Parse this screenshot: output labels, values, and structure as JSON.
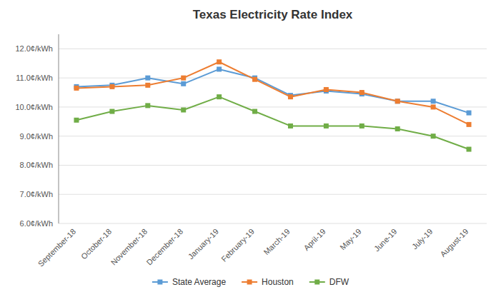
{
  "chart_data": {
    "type": "line",
    "title": "Texas Electricity Rate Index",
    "categories": [
      "September-18",
      "October-18",
      "November-18",
      "December-18",
      "January-19",
      "February-19",
      "March-19",
      "April-19",
      "May-19",
      "June-19",
      "July-19",
      "August-19"
    ],
    "series": [
      {
        "name": "State Average",
        "color": "#5B9BD5",
        "values": [
          10.7,
          10.75,
          11.0,
          10.8,
          11.3,
          11.0,
          10.4,
          10.55,
          10.45,
          10.2,
          10.2,
          9.8
        ]
      },
      {
        "name": "Houston",
        "color": "#ED7D31",
        "values": [
          10.65,
          10.7,
          10.75,
          11.0,
          11.55,
          10.95,
          10.35,
          10.6,
          10.5,
          10.2,
          10.0,
          9.4
        ]
      },
      {
        "name": "DFW",
        "color": "#70AD47",
        "values": [
          9.55,
          9.85,
          10.05,
          9.9,
          10.35,
          9.85,
          9.35,
          9.35,
          9.35,
          9.25,
          9.0,
          8.55
        ]
      }
    ],
    "marker": "square",
    "ylim": [
      6.0,
      12.5
    ],
    "yticks": [
      {
        "value": 6.0,
        "label": "6.0¢/kWh"
      },
      {
        "value": 7.0,
        "label": "7.0¢/kWh"
      },
      {
        "value": 8.0,
        "label": "8.0¢/kWh"
      },
      {
        "value": 9.0,
        "label": "9.0¢/kWh"
      },
      {
        "value": 10.0,
        "label": "10.0¢/kWh"
      },
      {
        "value": 11.0,
        "label": "11.0¢/kWh"
      },
      {
        "value": 12.0,
        "label": "12.0¢/kWh"
      }
    ],
    "grid": true,
    "legend": "bottom"
  }
}
